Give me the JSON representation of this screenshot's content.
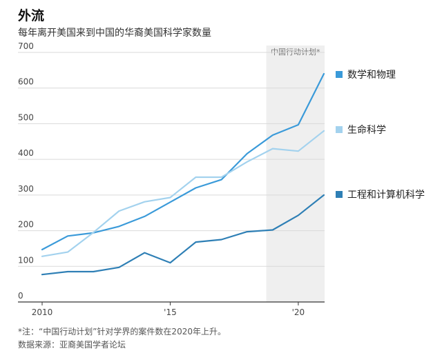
{
  "title": "外流",
  "subtitle": "每年离开美国来到中国的华裔美国科学家数量",
  "notes": {
    "note1": "*注：“中国行动计划”针对学界的案件数在2020年上升。",
    "note2": "数据来源：亚裔美国学者论坛"
  },
  "chart_data": {
    "type": "line",
    "x": [
      2010,
      2011,
      2012,
      2013,
      2014,
      2015,
      2016,
      2017,
      2018,
      2019,
      2020,
      2021
    ],
    "x_ticks": [
      2010,
      2015,
      2020
    ],
    "x_tick_labels": [
      "2010",
      "'15",
      "'20"
    ],
    "ylim": [
      0,
      700
    ],
    "y_ticks": [
      0,
      100,
      200,
      300,
      400,
      500,
      600,
      700
    ],
    "grid": true,
    "shaded_period": {
      "from": 2018.75,
      "to": 2021.1,
      "label": "中国行动计划*"
    },
    "series": [
      {
        "name": "数学和物理",
        "color": "#3a9ad9",
        "values": [
          147,
          185,
          194,
          212,
          240,
          280,
          320,
          343,
          416,
          468,
          497,
          640
        ]
      },
      {
        "name": "生命科学",
        "color": "#a3d2ee",
        "values": [
          128,
          140,
          195,
          255,
          281,
          293,
          350,
          350,
          393,
          430,
          423,
          480
        ]
      },
      {
        "name": "工程和计算机科学",
        "color": "#2e7fb5",
        "values": [
          77,
          85,
          85,
          97,
          138,
          110,
          168,
          175,
          197,
          202,
          243,
          300
        ]
      }
    ]
  }
}
